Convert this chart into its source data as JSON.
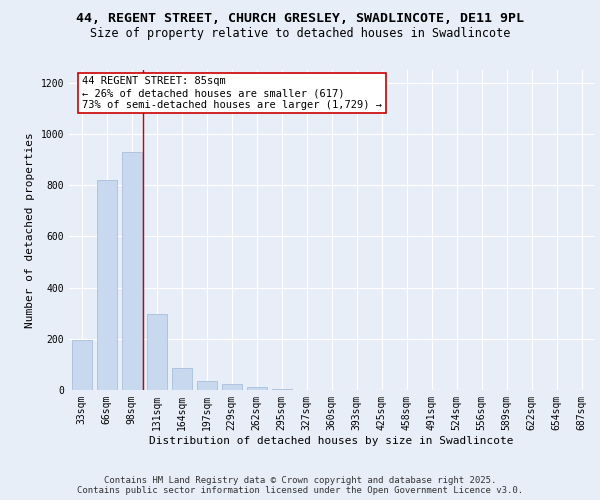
{
  "title_line1": "44, REGENT STREET, CHURCH GRESLEY, SWADLINCOTE, DE11 9PL",
  "title_line2": "Size of property relative to detached houses in Swadlincote",
  "xlabel": "Distribution of detached houses by size in Swadlincote",
  "ylabel": "Number of detached properties",
  "categories": [
    "33sqm",
    "66sqm",
    "98sqm",
    "131sqm",
    "164sqm",
    "197sqm",
    "229sqm",
    "262sqm",
    "295sqm",
    "327sqm",
    "360sqm",
    "393sqm",
    "425sqm",
    "458sqm",
    "491sqm",
    "524sqm",
    "556sqm",
    "589sqm",
    "622sqm",
    "654sqm",
    "687sqm"
  ],
  "values": [
    197,
    820,
    930,
    298,
    85,
    37,
    22,
    13,
    5,
    1,
    0,
    0,
    0,
    0,
    0,
    0,
    0,
    0,
    0,
    0,
    0
  ],
  "bar_color": "#c8d8ef",
  "bar_edge_color": "#a0b8d8",
  "vline_x": 2.45,
  "vline_color": "#cc0000",
  "annotation_text": "44 REGENT STREET: 85sqm\n← 26% of detached houses are smaller (617)\n73% of semi-detached houses are larger (1,729) →",
  "annotation_box_color": "#ffffff",
  "annotation_box_edge": "#cc0000",
  "ylim": [
    0,
    1250
  ],
  "yticks": [
    0,
    200,
    400,
    600,
    800,
    1000,
    1200
  ],
  "background_color": "#e8eef8",
  "plot_background": "#e8eef8",
  "footer_line1": "Contains HM Land Registry data © Crown copyright and database right 2025.",
  "footer_line2": "Contains public sector information licensed under the Open Government Licence v3.0.",
  "title_fontsize": 9.5,
  "subtitle_fontsize": 8.5,
  "axis_label_fontsize": 8,
  "tick_fontsize": 7,
  "annotation_fontsize": 7.5,
  "footer_fontsize": 6.5
}
